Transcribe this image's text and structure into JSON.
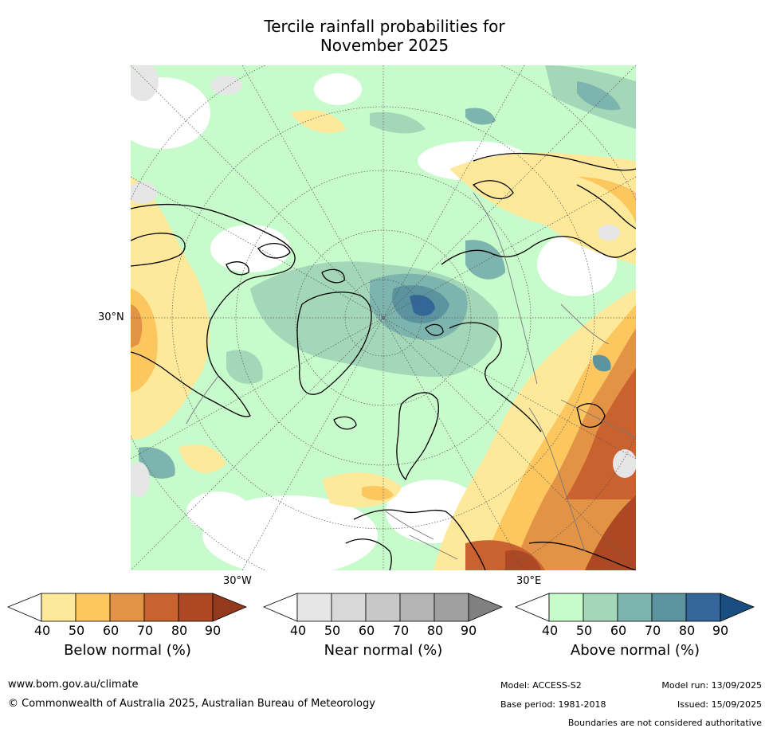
{
  "title": {
    "line1": "Tercile rainfall probabilities for",
    "line2": "November 2025"
  },
  "map": {
    "projection": "north-polar-stereographic",
    "lat_label": "30°N",
    "lon_left_label": "30°W",
    "lon_right_label": "30°E"
  },
  "colorbars": [
    {
      "id": "below",
      "title": "Below normal (%)",
      "ticks": [
        "40",
        "50",
        "60",
        "70",
        "80",
        "90"
      ],
      "colors": [
        "#ffffff",
        "#fee99a",
        "#fdc760",
        "#e39345",
        "#c9622f",
        "#ad4824",
        "#933a1d"
      ]
    },
    {
      "id": "near",
      "title": "Near normal (%)",
      "ticks": [
        "40",
        "50",
        "60",
        "70",
        "80",
        "90"
      ],
      "colors": [
        "#ffffff",
        "#e6e6e6",
        "#d8d8d8",
        "#c8c8c8",
        "#b4b4b4",
        "#a0a0a0",
        "#808080"
      ]
    },
    {
      "id": "above",
      "title": "Above normal (%)",
      "ticks": [
        "40",
        "50",
        "60",
        "70",
        "80",
        "90"
      ],
      "colors": [
        "#ffffff",
        "#c8fbcc",
        "#a4d7b8",
        "#7db4ad",
        "#5b949f",
        "#336699",
        "#1a4d80"
      ]
    }
  ],
  "footer": {
    "website": "www.bom.gov.au/climate",
    "copyright": "© Commonwealth of Australia 2025, Australian Bureau of Meteorology",
    "model": "Model: ACCESS-S2",
    "base_period": "Base period: 1981-2018",
    "model_run": "Model run: 13/09/2025",
    "issued": "Issued: 15/09/2025",
    "disclaimer": "Boundaries are not considered authoritative"
  }
}
